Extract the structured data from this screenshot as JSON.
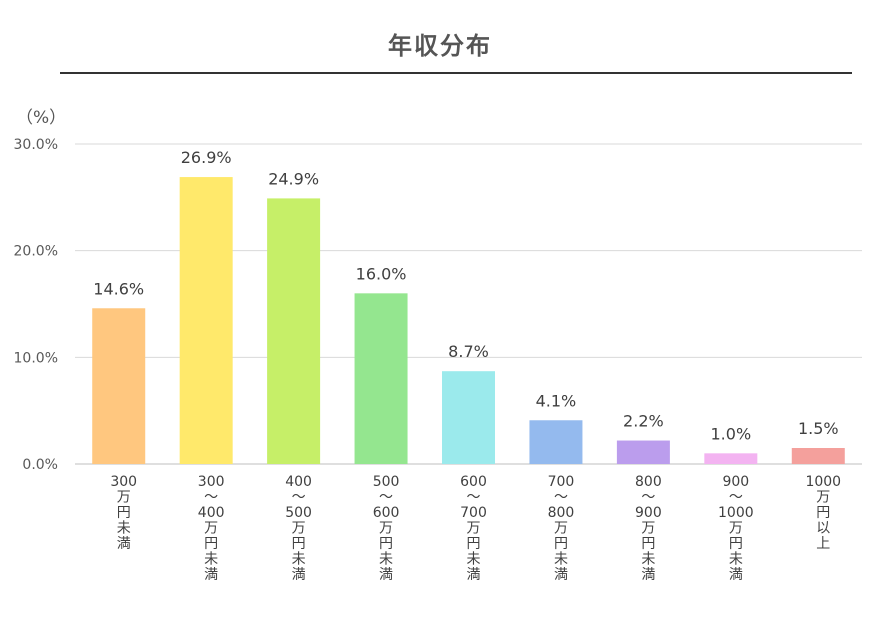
{
  "chart_data": {
    "type": "bar",
    "title": "年収分布",
    "unit_label": "（%）",
    "xlabel": "",
    "ylabel": "",
    "ylim": [
      0,
      30
    ],
    "yticks": [
      "0.0%",
      "10.0%",
      "20.0%",
      "30.0%"
    ],
    "grid": true,
    "legend": "none",
    "categories": [
      {
        "lines": [
          "300",
          "万",
          "円",
          "未",
          "満"
        ]
      },
      {
        "lines": [
          "300",
          "～",
          "400",
          "万",
          "円",
          "未",
          "満"
        ]
      },
      {
        "lines": [
          "400",
          "～",
          "500",
          "万",
          "円",
          "未",
          "満"
        ]
      },
      {
        "lines": [
          "500",
          "～",
          "600",
          "万",
          "円",
          "未",
          "満"
        ]
      },
      {
        "lines": [
          "600",
          "～",
          "700",
          "万",
          "円",
          "未",
          "満"
        ]
      },
      {
        "lines": [
          "700",
          "～",
          "800",
          "万",
          "円",
          "未",
          "満"
        ]
      },
      {
        "lines": [
          "800",
          "～",
          "900",
          "万",
          "円",
          "未",
          "満"
        ]
      },
      {
        "lines": [
          "900",
          "～",
          "1000",
          "万",
          "円",
          "未",
          "満"
        ]
      },
      {
        "lines": [
          "1000",
          "万",
          "円",
          "以",
          "上"
        ]
      }
    ],
    "values": [
      14.6,
      26.9,
      24.9,
      16.0,
      8.7,
      4.1,
      2.2,
      1.0,
      1.5
    ],
    "data_labels": [
      "14.6%",
      "26.9%",
      "24.9%",
      "16.0%",
      "8.7%",
      "4.1%",
      "2.2%",
      "1.0%",
      "1.5%"
    ],
    "colors": [
      "#ffc77f",
      "#ffe96b",
      "#c6ef68",
      "#94e68f",
      "#9beaec",
      "#94baee",
      "#bb9ded",
      "#f3b3f1",
      "#f4a09c"
    ]
  }
}
